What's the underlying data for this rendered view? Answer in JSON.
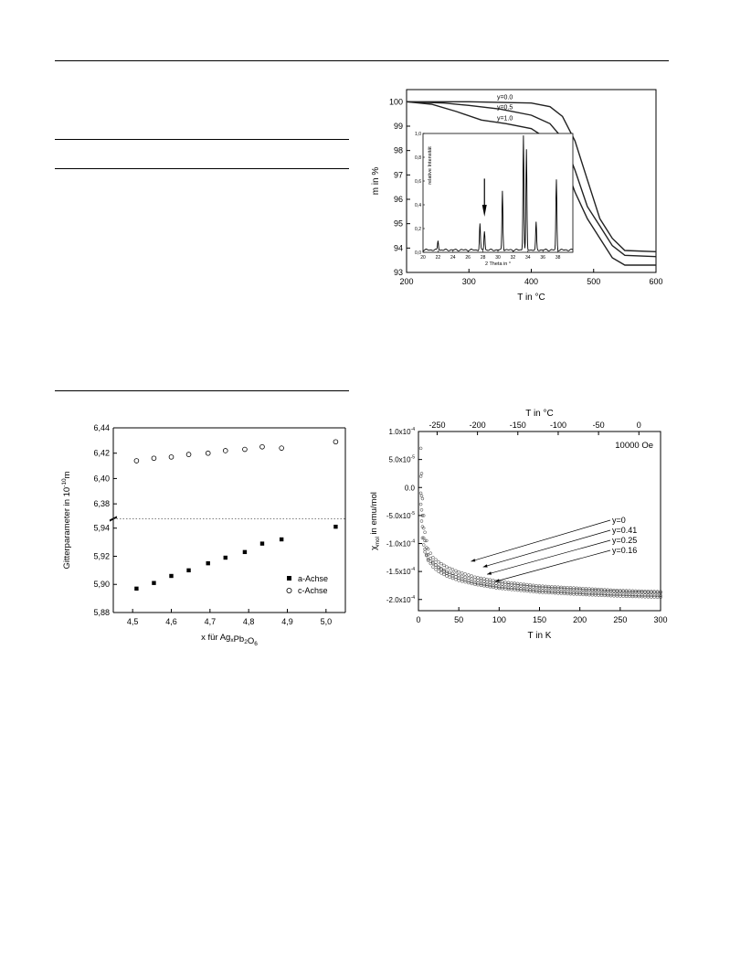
{
  "chart_data": [
    {
      "type": "line",
      "xlabel": "T in °C",
      "ylabel": "m in %",
      "xlim": [
        200,
        600
      ],
      "ylim": [
        93,
        100.5
      ],
      "x_ticks": [
        "200",
        "300",
        "400",
        "500",
        "600"
      ],
      "y_ticks": [
        "93",
        "94",
        "95",
        "96",
        "97",
        "98",
        "99",
        "100"
      ],
      "series": [
        {
          "name": "y=0.0",
          "x": [
            200,
            300,
            400,
            430,
            450,
            470,
            490,
            510,
            530,
            550,
            600
          ],
          "y": [
            100,
            100,
            99.95,
            99.8,
            99.4,
            98.4,
            96.8,
            95.2,
            94.4,
            93.9,
            93.85
          ]
        },
        {
          "name": "y=0.5",
          "x": [
            200,
            260,
            300,
            350,
            400,
            430,
            450,
            470,
            490,
            510,
            530,
            550,
            600
          ],
          "y": [
            100,
            99.95,
            99.85,
            99.7,
            99.45,
            99.1,
            98.5,
            97.2,
            95.7,
            94.9,
            94.1,
            93.7,
            93.65
          ]
        },
        {
          "name": "y=1.0",
          "x": [
            200,
            240,
            280,
            320,
            360,
            400,
            430,
            450,
            470,
            490,
            510,
            530,
            550,
            600
          ],
          "y": [
            100,
            99.9,
            99.6,
            99.25,
            99.1,
            98.9,
            98.4,
            97.7,
            96.3,
            95.2,
            94.4,
            93.6,
            93.3,
            93.3
          ]
        }
      ],
      "inset": {
        "xlabel": "2 Theta in °",
        "ylabel": "relative Intensität",
        "xlim": [
          20,
          40
        ],
        "ylim": [
          0,
          1.0
        ],
        "x_ticks": [
          "20",
          "22",
          "24",
          "26",
          "28",
          "30",
          "32",
          "34",
          "36",
          "38"
        ],
        "y_ticks": [
          "0,0",
          "0,2",
          "0,4",
          "0,6",
          "0,8",
          "1,0"
        ],
        "peaks": [
          {
            "x": 22.0,
            "y": 0.08
          },
          {
            "x": 27.6,
            "y": 0.22
          },
          {
            "x": 28.2,
            "y": 0.16
          },
          {
            "x": 30.6,
            "y": 0.5
          },
          {
            "x": 33.4,
            "y": 0.97
          },
          {
            "x": 33.8,
            "y": 0.84
          },
          {
            "x": 35.1,
            "y": 0.23
          },
          {
            "x": 37.8,
            "y": 0.59
          }
        ],
        "arrow_at": 28.2
      }
    },
    {
      "type": "scatter",
      "xlabel": "x für Ag",
      "xlabel_sub": "x",
      "xlabel_mid": "Pb",
      "xlabel_sub2": "2",
      "xlabel_end": "O",
      "xlabel_sub3": "6",
      "ylabel": "Gitterparameter in 10",
      "ylabel_sup": "-10",
      "ylabel_end": "m",
      "xlim": [
        4.45,
        5.05
      ],
      "x_ticks": [
        "4,5",
        "4,6",
        "4,7",
        "4,8",
        "4,9",
        "5,0"
      ],
      "y_ticks_upper": [
        "6,38",
        "6,40",
        "6,42",
        "6,44"
      ],
      "y_ticks_lower": [
        "5,88",
        "5,90",
        "5,92",
        "5,94"
      ],
      "series": [
        {
          "name": "a-Achse",
          "marker": "filled-square",
          "x": [
            4.51,
            4.555,
            4.6,
            4.645,
            4.695,
            4.74,
            4.79,
            4.835,
            4.885,
            5.025
          ],
          "y": [
            5.897,
            5.901,
            5.906,
            5.91,
            5.915,
            5.919,
            5.923,
            5.929,
            5.932,
            5.941
          ]
        },
        {
          "name": "c-Achse",
          "marker": "open-circle",
          "x": [
            4.51,
            4.555,
            4.6,
            4.645,
            4.695,
            4.74,
            4.79,
            4.835,
            4.885,
            5.025
          ],
          "y": [
            6.414,
            6.416,
            6.417,
            6.419,
            6.42,
            6.422,
            6.423,
            6.425,
            6.424,
            6.429
          ]
        }
      ],
      "legend": "bottom-right"
    },
    {
      "type": "scatter",
      "xlabel": "T in K",
      "x2label": "T in °C",
      "ylabel_pre": "χ",
      "ylabel_sub": "mol",
      "ylabel_end": " in emu/mol",
      "xlim": [
        0,
        300
      ],
      "ylim": [
        -0.00022,
        0.0001
      ],
      "x_ticks": [
        "0",
        "50",
        "100",
        "150",
        "200",
        "250",
        "300"
      ],
      "x2_ticks": [
        "-250",
        "-200",
        "-150",
        "-100",
        "-50",
        "0"
      ],
      "y_ticks": [
        {
          "value": -2.0,
          "label": "-2.0x10",
          "exp": "-4"
        },
        {
          "value": -1.5,
          "label": "-1.5x10",
          "exp": "-4"
        },
        {
          "value": -1.0,
          "label": "-1.0x10",
          "exp": "-4"
        },
        {
          "value": -0.5,
          "label": "-5.0x10",
          "exp": "-5"
        },
        {
          "value": 0.0,
          "label": "0.0",
          "exp": ""
        },
        {
          "value": 0.5,
          "label": "5.0x10",
          "exp": "-5"
        },
        {
          "value": 1.0,
          "label": "1.0x10",
          "exp": "-4"
        }
      ],
      "annotation": "10000 Oe",
      "series": [
        {
          "name": "y=0",
          "x": [
            3,
            5,
            8,
            12,
            18,
            25,
            35,
            50,
            70,
            100,
            150,
            200,
            250,
            300
          ],
          "y": [
            -0.3,
            -0.9,
            -1.15,
            -1.28,
            -1.35,
            -1.42,
            -1.5,
            -1.57,
            -1.65,
            -1.72,
            -1.79,
            -1.83,
            -1.86,
            -1.88
          ]
        },
        {
          "name": "y=0.41",
          "x": [
            3,
            5,
            8,
            12,
            18,
            25,
            35,
            50,
            70,
            100,
            150,
            200,
            250,
            300
          ],
          "y": [
            0.7,
            -0.2,
            -0.8,
            -1.1,
            -1.25,
            -1.33,
            -1.42,
            -1.51,
            -1.6,
            -1.68,
            -1.76,
            -1.8,
            -1.84,
            -1.86
          ]
        },
        {
          "name": "y=0.25",
          "x": [
            3,
            5,
            8,
            12,
            18,
            25,
            35,
            50,
            70,
            100,
            150,
            200,
            250,
            300
          ],
          "y": [
            0.2,
            -0.5,
            -0.95,
            -1.2,
            -1.33,
            -1.43,
            -1.53,
            -1.62,
            -1.7,
            -1.77,
            -1.84,
            -1.88,
            -1.91,
            -1.93
          ]
        },
        {
          "name": "y=0.16",
          "x": [
            3,
            5,
            8,
            12,
            18,
            25,
            35,
            50,
            70,
            100,
            150,
            200,
            250,
            300
          ],
          "y": [
            -0.1,
            -0.7,
            -1.1,
            -1.3,
            -1.42,
            -1.5,
            -1.58,
            -1.66,
            -1.73,
            -1.8,
            -1.87,
            -1.91,
            -1.94,
            -1.96
          ]
        }
      ]
    }
  ]
}
